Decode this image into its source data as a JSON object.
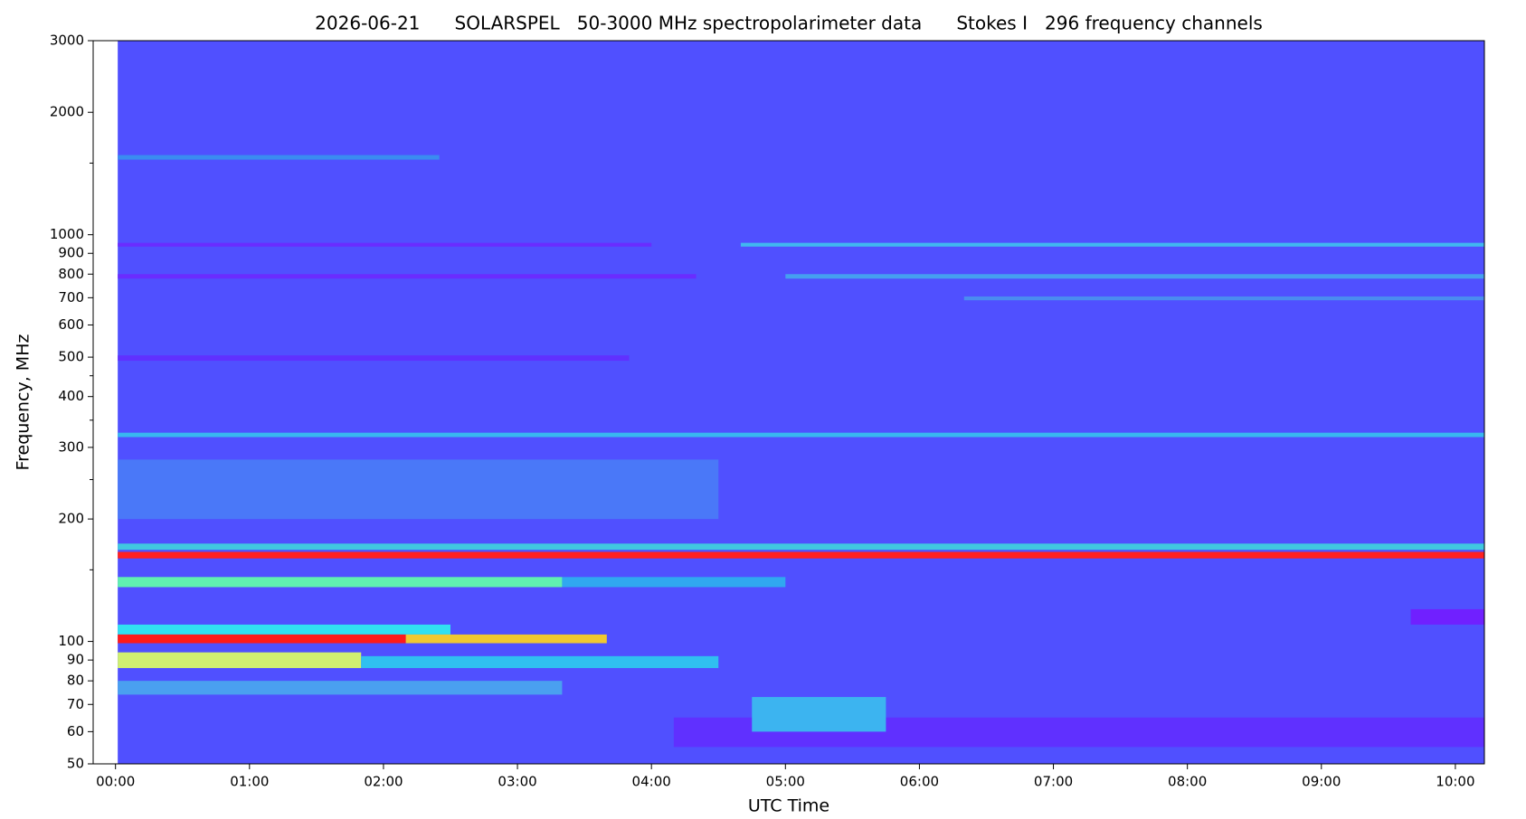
{
  "chart_data": {
    "type": "spectrogram",
    "title": "2026-06-21      SOLARSPEL   50-3000 MHz spectropolarimeter data      Stokes I   296 frequency channels",
    "x_label": "UTC Time",
    "y_label": "Frequency, MHz",
    "log_y": true,
    "xlim": [
      -10,
      613
    ],
    "xticks": [
      {
        "value": 0,
        "label": "00:00"
      },
      {
        "value": 60,
        "label": "01:00"
      },
      {
        "value": 120,
        "label": "02:00"
      },
      {
        "value": 180,
        "label": "03:00"
      },
      {
        "value": 240,
        "label": "04:00"
      },
      {
        "value": 300,
        "label": "05:00"
      },
      {
        "value": 360,
        "label": "06:00"
      },
      {
        "value": 420,
        "label": "07:00"
      },
      {
        "value": 480,
        "label": "08:00"
      },
      {
        "value": 540,
        "label": "09:00"
      },
      {
        "value": 600,
        "label": "10:00"
      }
    ],
    "ylim": [
      50,
      3000
    ],
    "yticks": [
      50,
      60,
      70,
      80,
      90,
      100,
      200,
      300,
      400,
      500,
      600,
      700,
      800,
      900,
      1000,
      2000,
      3000
    ],
    "yminor": [
      150,
      250,
      350,
      450,
      1500
    ],
    "bands": [
      {
        "f0": 50,
        "f1": 3000,
        "t0": 1,
        "t1": 613,
        "color": "#5050ff"
      },
      {
        "f0": 1530,
        "f1": 1570,
        "t0": 1,
        "t1": 145,
        "color": "#3a8cf0"
      },
      {
        "f0": 935,
        "f1": 955,
        "t0": 1,
        "t1": 240,
        "color": "#6a2cff"
      },
      {
        "f0": 935,
        "f1": 955,
        "t0": 280,
        "t1": 613,
        "color": "#40b8f0"
      },
      {
        "f0": 780,
        "f1": 800,
        "t0": 1,
        "t1": 260,
        "color": "#6a2cff"
      },
      {
        "f0": 780,
        "f1": 800,
        "t0": 300,
        "t1": 613,
        "color": "#45a0f0"
      },
      {
        "f0": 690,
        "f1": 705,
        "t0": 380,
        "t1": 613,
        "color": "#4a8cf0"
      },
      {
        "f0": 490,
        "f1": 505,
        "t0": 1,
        "t1": 230,
        "color": "#6030ff"
      },
      {
        "f0": 318,
        "f1": 326,
        "t0": 1,
        "t1": 613,
        "color": "#38b8f0"
      },
      {
        "f0": 200,
        "f1": 280,
        "t0": 1,
        "t1": 270,
        "color": "#4a78f8"
      },
      {
        "f0": 168,
        "f1": 174,
        "t0": 1,
        "t1": 613,
        "color": "#40c8e0"
      },
      {
        "f0": 160,
        "f1": 166,
        "t0": 1,
        "t1": 613,
        "color": "#ff2020"
      },
      {
        "f0": 136,
        "f1": 144,
        "t0": 1,
        "t1": 200,
        "color": "#60f0b0"
      },
      {
        "f0": 136,
        "f1": 144,
        "t0": 200,
        "t1": 300,
        "color": "#30a8f0"
      },
      {
        "f0": 104,
        "f1": 110,
        "t0": 1,
        "t1": 150,
        "color": "#30e0f0"
      },
      {
        "f0": 99,
        "f1": 104,
        "t0": 1,
        "t1": 130,
        "color": "#ff1a1a"
      },
      {
        "f0": 99,
        "f1": 104,
        "t0": 130,
        "t1": 220,
        "color": "#f0c830"
      },
      {
        "f0": 86,
        "f1": 94,
        "t0": 1,
        "t1": 110,
        "color": "#d0f070"
      },
      {
        "f0": 86,
        "f1": 92,
        "t0": 110,
        "t1": 270,
        "color": "#30c0f0"
      },
      {
        "f0": 74,
        "f1": 80,
        "t0": 1,
        "t1": 200,
        "color": "#4aa0f0"
      },
      {
        "f0": 55,
        "f1": 65,
        "t0": 250,
        "t1": 613,
        "color": "#6030ff"
      },
      {
        "f0": 60,
        "f1": 73,
        "t0": 285,
        "t1": 345,
        "color": "#3cb4f0"
      },
      {
        "f0": 110,
        "f1": 120,
        "t0": 580,
        "t1": 613,
        "color": "#7020ff"
      }
    ]
  }
}
